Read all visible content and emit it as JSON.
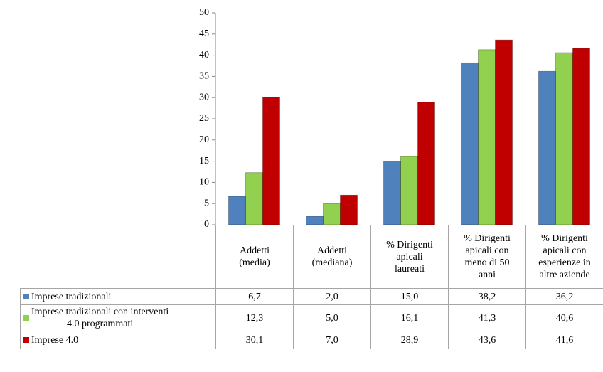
{
  "chart_data": {
    "type": "bar",
    "categories": [
      "Addetti\n(media)",
      "Addetti\n(mediana)",
      "% Dirigenti\napicali\nlaureati",
      "% Dirigenti\napicali con\nmeno di 50\nanni",
      "% Dirigenti\napicali con\nesperienze in\naltre aziende"
    ],
    "series": [
      {
        "name": "Imprese tradizionali",
        "color": "#4f81bd",
        "values": [
          6.7,
          2.0,
          15.0,
          38.2,
          36.2
        ],
        "value_labels": [
          "6,7",
          "2,0",
          "15,0",
          "38,2",
          "36,2"
        ]
      },
      {
        "name": "Imprese tradizionali con interventi\n4.0 programmati",
        "color": "#92d050",
        "values": [
          12.3,
          5.0,
          16.1,
          41.3,
          40.6
        ],
        "value_labels": [
          "12,3",
          "5,0",
          "16,1",
          "41,3",
          "40,6"
        ]
      },
      {
        "name": "Imprese 4.0",
        "color": "#c00000",
        "values": [
          30.1,
          7.0,
          28.9,
          43.6,
          41.6
        ],
        "value_labels": [
          "30,1",
          "7,0",
          "28,9",
          "43,6",
          "41,6"
        ]
      }
    ],
    "ylim": [
      0,
      50
    ],
    "yticks": [
      0,
      5,
      10,
      15,
      20,
      25,
      30,
      35,
      40,
      45,
      50
    ],
    "grid": false
  }
}
